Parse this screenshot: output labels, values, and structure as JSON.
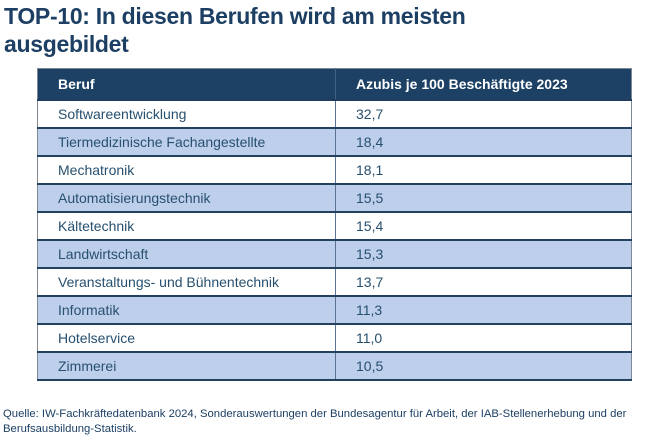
{
  "title": "TOP-10: In diesen Berufen wird am meisten ausgebildet",
  "table": {
    "columns": [
      "Beruf",
      "Azubis je 100 Beschäftigte 2023"
    ],
    "rows": [
      {
        "beruf": "Softwareentwicklung",
        "value": "32,7"
      },
      {
        "beruf": "Tiermedizinische Fachangestellte",
        "value": "18,4"
      },
      {
        "beruf": "Mechatronik",
        "value": "18,1"
      },
      {
        "beruf": "Automatisierungstechnik",
        "value": "15,5"
      },
      {
        "beruf": "Kältetechnik",
        "value": "15,4"
      },
      {
        "beruf": "Landwirtschaft",
        "value": "15,3"
      },
      {
        "beruf": "Veranstaltungs- und Bühnentechnik",
        "value": "13,7"
      },
      {
        "beruf": "Informatik",
        "value": "11,3"
      },
      {
        "beruf": "Hotelservice",
        "value": "11,0"
      },
      {
        "beruf": "Zimmerei",
        "value": "10,5"
      }
    ]
  },
  "source": "Quelle: IW-Fachkräftedatenbank 2024, Sonderauswertungen der Bundesagentur für Arbeit, der IAB-Stellenerhebung und der Berufsausbildung-Statistik.",
  "colors": {
    "title_text": "#1c3f63",
    "header_bg": "#1c4164",
    "header_text": "#ffffff",
    "row_alt_bg": "#bdcfeb",
    "row_text": "#27506f",
    "row_separator": "#24415f",
    "outer_border": "#7e8893"
  },
  "chart_data": {
    "type": "table",
    "title": "TOP-10: In diesen Berufen wird am meisten ausgebildet",
    "columns": [
      "Beruf",
      "Azubis je 100 Beschäftigte 2023"
    ],
    "categories": [
      "Softwareentwicklung",
      "Tiermedizinische Fachangestellte",
      "Mechatronik",
      "Automatisierungstechnik",
      "Kältetechnik",
      "Landwirtschaft",
      "Veranstaltungs- und Bühnentechnik",
      "Informatik",
      "Hotelservice",
      "Zimmerei"
    ],
    "values": [
      32.7,
      18.4,
      18.1,
      15.5,
      15.4,
      15.3,
      13.7,
      11.3,
      11.0,
      10.5
    ]
  }
}
